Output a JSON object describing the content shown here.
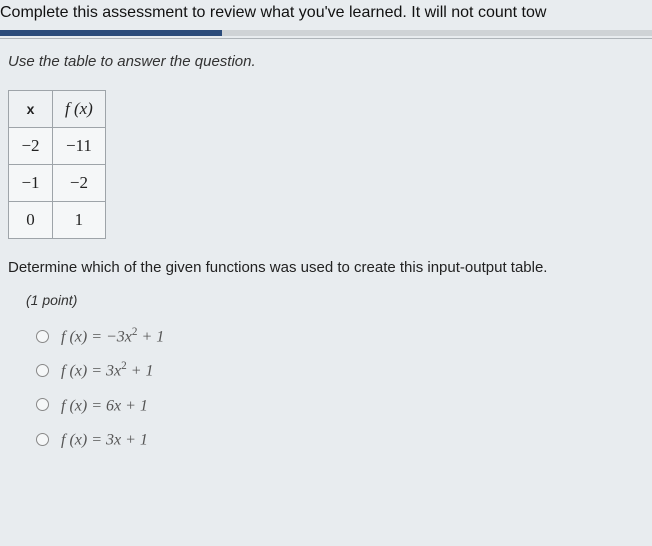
{
  "header": {
    "text": "Complete this assessment to review what you've learned. It will not count tow",
    "progress_percent": 34,
    "progress_fill_color": "#2b4b7a",
    "progress_track_color": "#cfd3d6"
  },
  "instruction": "Use the table to answer the question.",
  "table": {
    "header_x": "x",
    "header_fx": "f (x)",
    "rows": [
      {
        "x": "−2",
        "fx": "−11"
      },
      {
        "x": "−1",
        "fx": "−2"
      },
      {
        "x": "0",
        "fx": "1"
      }
    ]
  },
  "prompt": "Determine which of the given functions was used to create this input-output table.",
  "points_label": "(1 point)",
  "options": [
    {
      "prefix": "f (x) = ",
      "coef": "−3",
      "var": "x",
      "exp": "2",
      "suffix": " + 1"
    },
    {
      "prefix": "f (x) = ",
      "coef": "3",
      "var": "x",
      "exp": "2",
      "suffix": " + 1"
    },
    {
      "prefix": "f (x) = ",
      "coef": "6",
      "var": "x",
      "exp": "",
      "suffix": " + 1"
    },
    {
      "prefix": "f (x) = ",
      "coef": "3",
      "var": "x",
      "exp": "",
      "suffix": " + 1"
    }
  ],
  "colors": {
    "page_bg": "#e8ecef",
    "text": "#222",
    "table_border": "#9ea4a9",
    "option_text": "#555"
  }
}
